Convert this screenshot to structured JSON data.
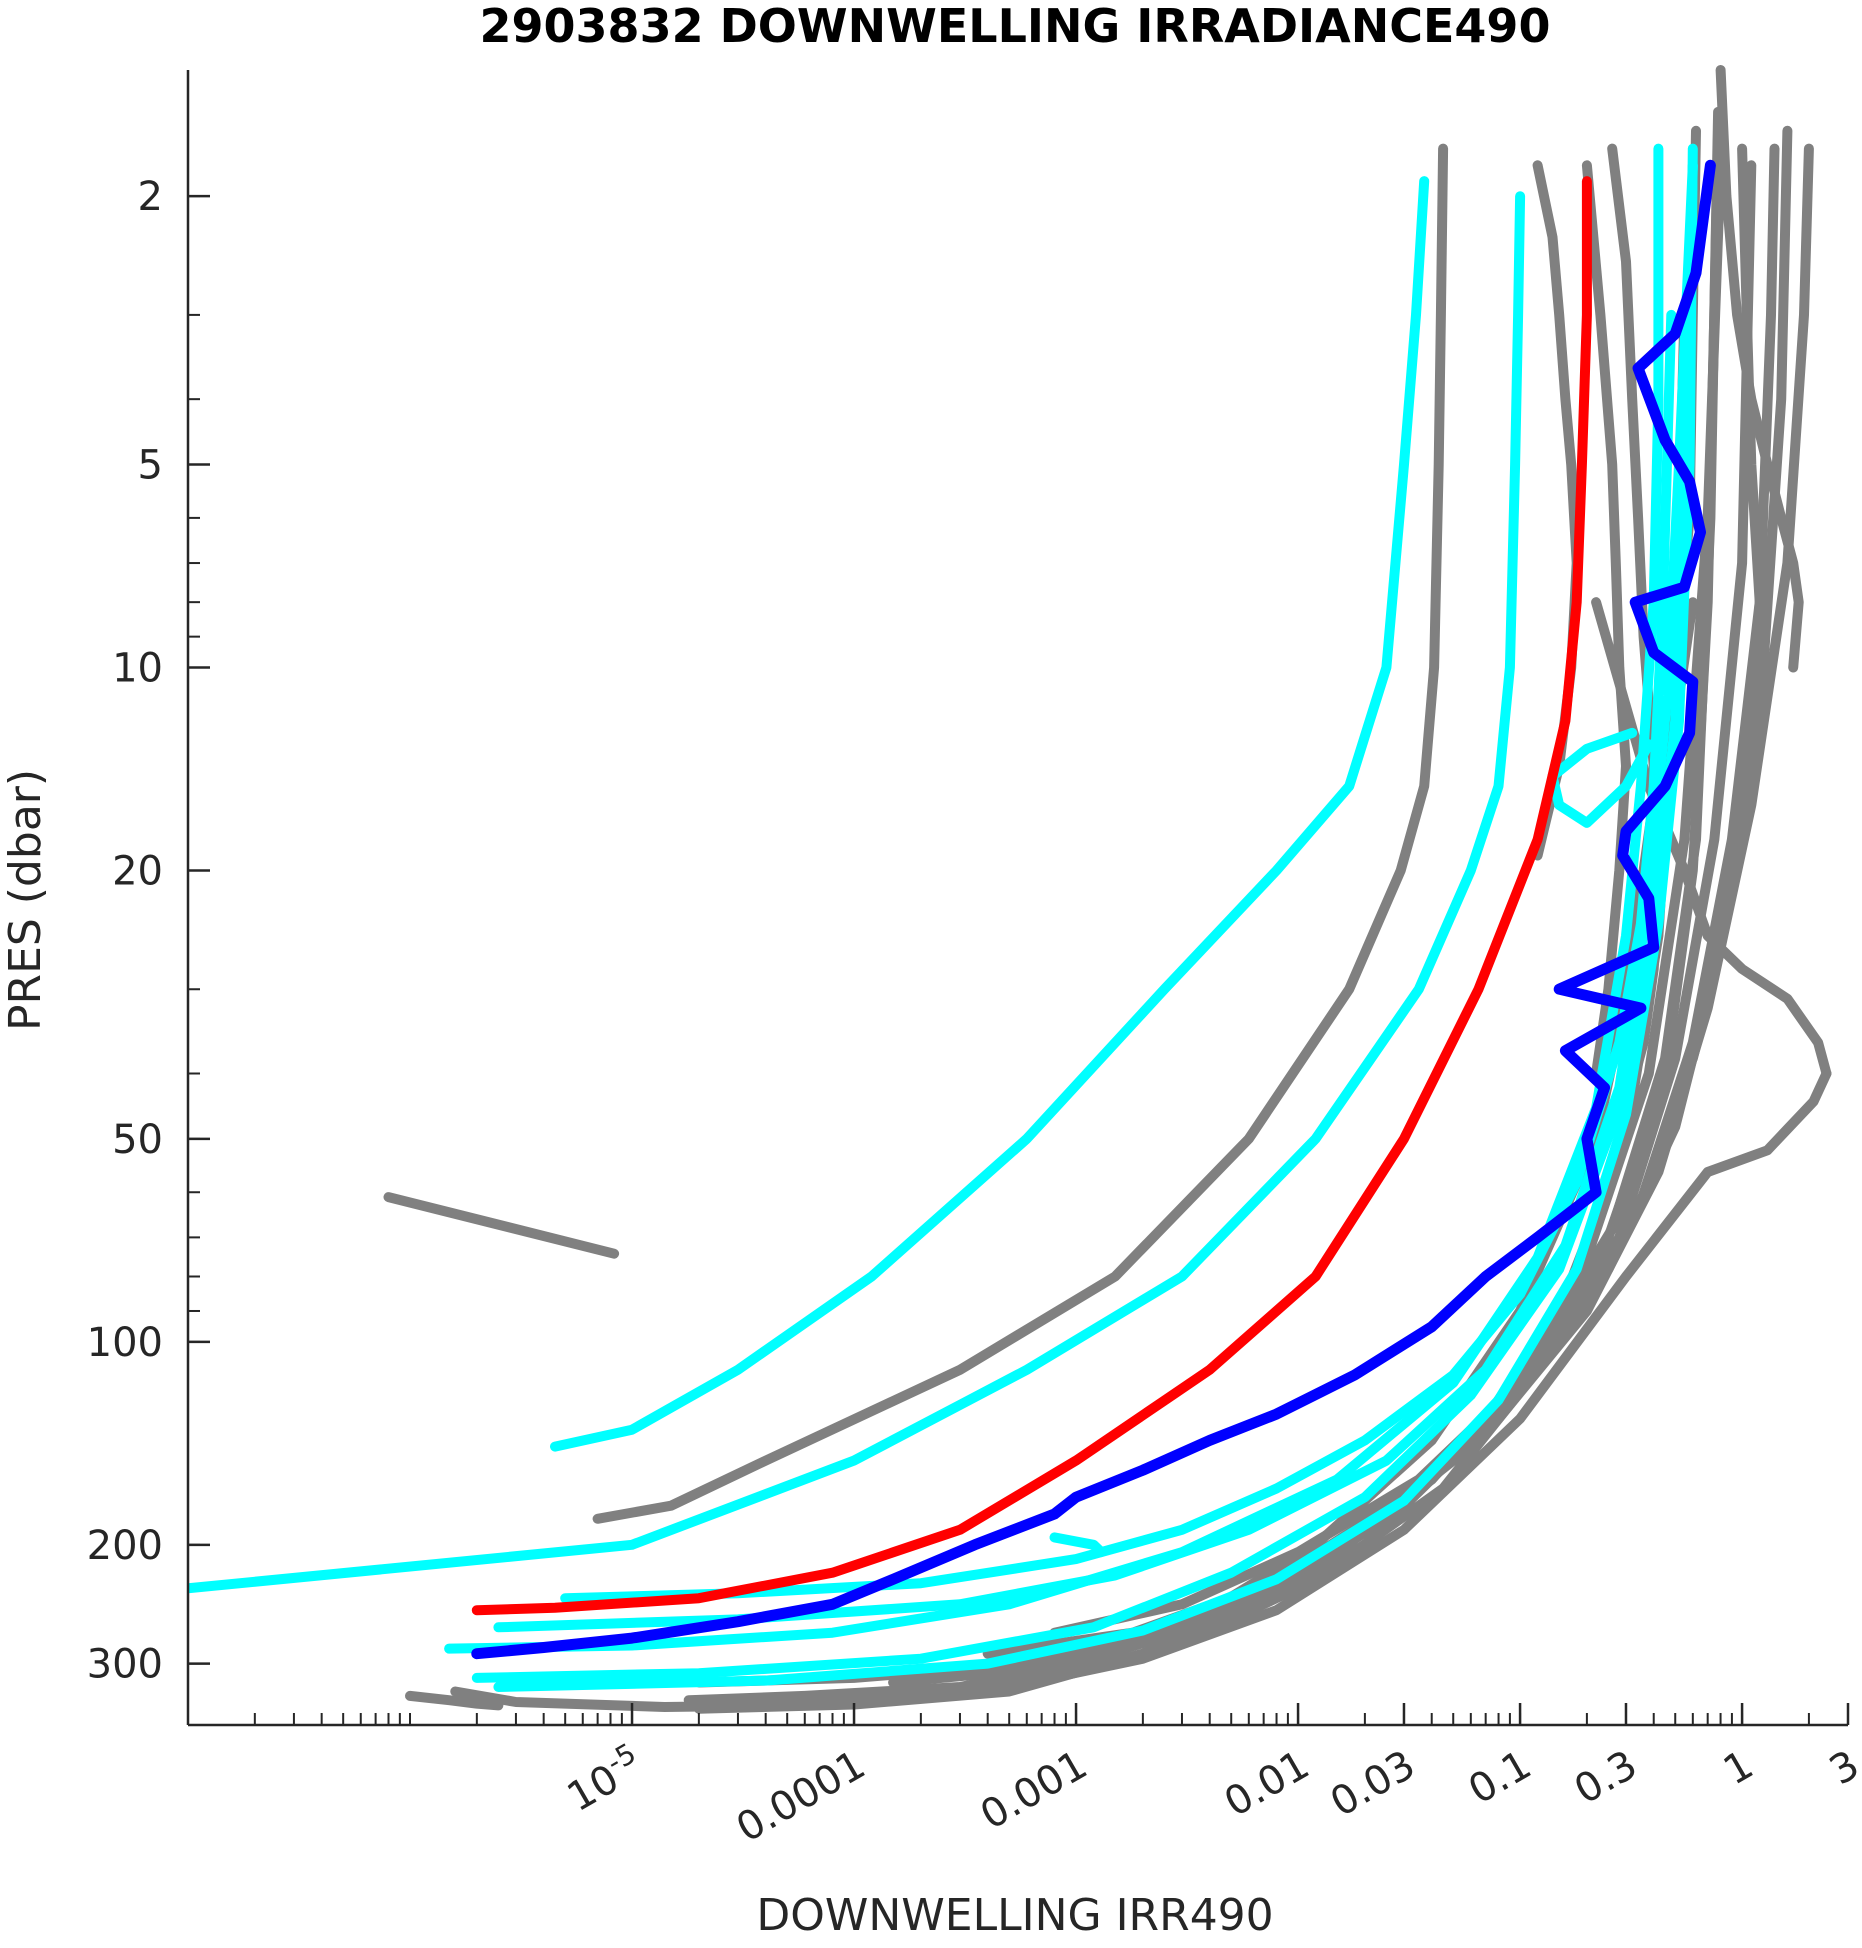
{
  "chart_data": {
    "type": "line",
    "title": "2903832  DOWNWELLING IRRADIANCE490",
    "xlabel": "DOWNWELLING IRR490",
    "ylabel": "PRES (dbar)",
    "x_scale": "log",
    "y_scale": "log",
    "y_reversed": true,
    "xlim": [
      1e-07,
      3
    ],
    "ylim": [
      1.3,
      370
    ],
    "x_ticks": [
      {
        "value": 1e-05,
        "base": "10",
        "exp": "-5"
      },
      {
        "value": 0.0001,
        "label": "0.0001"
      },
      {
        "value": 0.001,
        "label": "0.001"
      },
      {
        "value": 0.01,
        "label": "0.01"
      },
      {
        "value": 0.03,
        "label": "0.03"
      },
      {
        "value": 0.1,
        "label": "0.1"
      },
      {
        "value": 0.3,
        "label": "0.3"
      },
      {
        "value": 1,
        "label": "1"
      },
      {
        "value": 3,
        "label": "3"
      }
    ],
    "y_ticks": [
      {
        "value": 2,
        "label": "2"
      },
      {
        "value": 5,
        "label": "5"
      },
      {
        "value": 10,
        "label": "10"
      },
      {
        "value": 20,
        "label": "20"
      },
      {
        "value": 50,
        "label": "50"
      },
      {
        "value": 100,
        "label": "100"
      },
      {
        "value": 200,
        "label": "200"
      },
      {
        "value": 300,
        "label": "300"
      }
    ],
    "colors": {
      "gray": "#808080",
      "cyan": "#00ffff",
      "red": "#ff0000",
      "blue": "#0000ff"
    },
    "series": [
      {
        "color": "gray",
        "x": [
          0.045,
          0.044,
          0.043,
          0.041,
          0.037,
          0.029,
          0.017,
          0.006,
          0.0015,
          0.0003,
          4e-05,
          1.5e-05,
          7e-06
        ],
        "y": [
          1.7,
          3,
          5,
          10,
          15,
          20,
          30,
          50,
          80,
          110,
          150,
          175,
          183
        ]
      },
      {
        "color": "gray",
        "x": [
          1.6e-06,
          3e-06,
          1.4e-05,
          5e-05,
          0.0002,
          0.0008,
          0.003,
          0.012,
          0.04,
          0.1,
          0.22,
          0.4,
          0.6
        ],
        "y": [
          330,
          342,
          348,
          346,
          335,
          310,
          265,
          200,
          140,
          90,
          50,
          20,
          8
        ]
      },
      {
        "color": "gray",
        "x": [
          1.8e-05,
          6e-05,
          0.0003,
          0.001,
          0.005,
          0.02,
          0.06,
          0.15,
          0.3,
          0.42,
          0.5,
          0.55
        ],
        "y": [
          340,
          335,
          325,
          300,
          255,
          200,
          140,
          90,
          50,
          25,
          10,
          3
        ]
      },
      {
        "color": "gray",
        "x": [
          2e-05,
          0.0001,
          0.0005,
          0.002,
          0.008,
          0.03,
          0.09,
          0.2,
          0.38,
          0.55,
          0.7,
          0.8
        ],
        "y": [
          350,
          345,
          330,
          290,
          235,
          175,
          120,
          75,
          40,
          18,
          6,
          1.8
        ]
      },
      {
        "color": "gray",
        "x": [
          3e-05,
          0.00015,
          0.0007,
          0.003,
          0.012,
          0.045,
          0.12,
          0.28,
          0.5,
          0.75,
          1.0,
          1.1
        ],
        "y": [
          345,
          338,
          318,
          280,
          225,
          165,
          110,
          70,
          38,
          18,
          7,
          1.8
        ]
      },
      {
        "color": "gray",
        "x": [
          2e-05,
          0.0001,
          0.0006,
          0.0025,
          0.01,
          0.04,
          0.11,
          0.26,
          0.45,
          0.62,
          0.72,
          0.78
        ],
        "y": [
          320,
          315,
          300,
          265,
          215,
          160,
          108,
          68,
          38,
          18,
          6,
          1.5
        ]
      },
      {
        "color": "gray",
        "x": [
          0.0001,
          0.0005,
          0.002,
          0.008,
          0.03,
          0.1,
          0.3,
          0.7,
          1.3,
          2.1,
          2.4
        ],
        "y": [
          338,
          325,
          295,
          250,
          190,
          130,
          80,
          56,
          52,
          44,
          40
        ]
      },
      {
        "color": "gray",
        "x": [
          0.22,
          0.38,
          0.55,
          0.7,
          1.0,
          1.6,
          2.2,
          2.4
        ],
        "y": [
          8,
          15,
          20,
          25,
          28,
          31,
          36,
          40
        ]
      },
      {
        "color": "gray",
        "x": [
          0.00015,
          0.0007,
          0.003,
          0.012,
          0.04,
          0.11,
          0.25,
          0.45,
          0.6,
          0.7,
          0.75,
          0.78
        ],
        "y": [
          320,
          305,
          270,
          215,
          160,
          110,
          70,
          40,
          20,
          8,
          3,
          1.6
        ]
      },
      {
        "color": "gray",
        "x": [
          0.0002,
          0.001,
          0.004,
          0.015,
          0.05,
          0.15,
          0.35,
          0.6,
          0.9,
          1.2,
          1.35,
          1.4
        ],
        "y": [
          310,
          295,
          255,
          205,
          150,
          100,
          62,
          36,
          18,
          8,
          3,
          1.7
        ]
      },
      {
        "color": "gray",
        "x": [
          0.0004,
          0.0018,
          0.007,
          0.025,
          0.08,
          0.2,
          0.42,
          0.7,
          1.1,
          1.6,
          1.9,
          2.0
        ],
        "y": [
          290,
          270,
          230,
          180,
          130,
          90,
          56,
          32,
          16,
          7,
          3,
          1.7
        ]
      },
      {
        "color": "gray",
        "x": [
          0.0008,
          0.003,
          0.01,
          0.035,
          0.1,
          0.25,
          0.5,
          0.8,
          1.2,
          1.5,
          1.6
        ],
        "y": [
          270,
          245,
          205,
          160,
          115,
          78,
          48,
          26,
          12,
          4,
          1.6
        ]
      },
      {
        "color": "gray",
        "x": [
          0.12,
          0.14,
          0.15,
          0.16,
          0.17,
          0.18,
          0.17,
          0.15,
          0.13,
          0.12
        ],
        "y": [
          1.8,
          2.3,
          3,
          4,
          5,
          7,
          10,
          14,
          17,
          19
        ]
      },
      {
        "color": "gray",
        "x": [
          0.2,
          0.23,
          0.26,
          0.27,
          0.28,
          0.3,
          0.28,
          0.25,
          0.22
        ],
        "y": [
          1.8,
          3,
          5,
          7,
          10,
          14,
          20,
          30,
          40
        ]
      },
      {
        "color": "gray",
        "x": [
          0.26,
          0.3,
          0.32,
          0.34,
          0.36,
          0.4,
          0.42,
          0.4,
          0.36,
          0.3
        ],
        "y": [
          1.7,
          2.5,
          4,
          6,
          9,
          14,
          20,
          28,
          36,
          45
        ]
      },
      {
        "color": "gray",
        "x": [
          0.8,
          0.85,
          0.95,
          1.1,
          1.3,
          1.5,
          1.7,
          1.8,
          1.7
        ],
        "y": [
          1.3,
          2,
          3,
          4,
          5,
          6,
          7,
          8,
          10
        ]
      },
      {
        "color": "gray",
        "x": [
          0.62,
          0.6,
          0.58,
          0.5,
          0.42,
          0.36,
          0.3,
          0.26
        ],
        "y": [
          1.6,
          3,
          6,
          10,
          14,
          20,
          28,
          36
        ]
      },
      {
        "color": "gray",
        "x": [
          1.0,
          1.05,
          1.1,
          1.2,
          1.1,
          0.95,
          0.8,
          0.6
        ],
        "y": [
          1.7,
          3,
          5,
          8,
          12,
          18,
          26,
          38
        ]
      },
      {
        "color": "gray",
        "x": [
          1e-06,
          1.5e-06,
          2e-06,
          2.5e-06
        ],
        "y": [
          335,
          340,
          344,
          346
        ]
      },
      {
        "color": "gray",
        "x": [
          8e-07,
          8.3e-06
        ],
        "y": [
          61,
          74
        ]
      },
      {
        "color": "cyan",
        "x": [
          0.037,
          0.034,
          0.03,
          0.025,
          0.017,
          0.008,
          0.0025,
          0.0006,
          0.00012,
          3e-05,
          1e-05,
          4.5e-06
        ],
        "y": [
          1.9,
          3,
          5,
          10,
          15,
          20,
          30,
          50,
          80,
          110,
          135,
          143
        ]
      },
      {
        "color": "cyan",
        "x": [
          0.1,
          0.098,
          0.095,
          0.09,
          0.08,
          0.06,
          0.035,
          0.012,
          0.003,
          0.0006,
          0.0001,
          1e-05,
          1e-07
        ],
        "y": [
          2,
          3,
          5,
          10,
          15,
          20,
          30,
          50,
          80,
          110,
          150,
          200,
          232
        ]
      },
      {
        "color": "cyan",
        "x": [
          1.5e-06,
          1e-05,
          8e-05,
          0.0005,
          0.003,
          0.015,
          0.05,
          0.12,
          0.22,
          0.3,
          0.35,
          0.4,
          0.42,
          0.42
        ],
        "y": [
          285,
          282,
          270,
          245,
          205,
          160,
          115,
          75,
          45,
          25,
          15,
          8,
          4,
          1.7
        ]
      },
      {
        "color": "cyan",
        "x": [
          2e-06,
          2e-05,
          0.0002,
          0.0012,
          0.005,
          0.02,
          0.06,
          0.15,
          0.28,
          0.4,
          0.5,
          0.55,
          0.58,
          0.6
        ],
        "y": [
          315,
          310,
          295,
          265,
          220,
          170,
          120,
          78,
          45,
          25,
          12,
          6,
          3,
          1.8
        ]
      },
      {
        "color": "cyan",
        "x": [
          2.5e-06,
          4e-05,
          0.0004,
          0.002,
          0.008,
          0.03,
          0.08,
          0.18,
          0.3,
          0.42,
          0.52,
          0.58,
          0.6
        ],
        "y": [
          325,
          318,
          300,
          268,
          225,
          172,
          122,
          78,
          46,
          24,
          12,
          5,
          1.7
        ]
      },
      {
        "color": "cyan",
        "x": [
          2.5e-06,
          3e-05,
          0.0003,
          0.0015,
          0.006,
          0.025,
          0.07,
          0.16,
          0.28,
          0.38,
          0.46,
          0.52,
          0.6
        ],
        "y": [
          265,
          258,
          245,
          222,
          190,
          150,
          110,
          72,
          42,
          22,
          11,
          5,
          1.8
        ]
      },
      {
        "color": "cyan",
        "x": [
          5e-06,
          3e-05,
          0.0002,
          0.001,
          0.003,
          0.008,
          0.02,
          0.05,
          0.1,
          0.18,
          0.28,
          0.35,
          0.4,
          0.44,
          0.48
        ],
        "y": [
          240,
          236,
          228,
          210,
          190,
          165,
          140,
          112,
          85,
          58,
          36,
          24,
          15,
          8,
          3
        ]
      },
      {
        "color": "cyan",
        "x": [
          0.0008,
          0.0012,
          0.0013
        ],
        "y": [
          195,
          200,
          205
        ]
      },
      {
        "color": "cyan",
        "x": [
          0.32,
          0.2,
          0.14,
          0.15,
          0.2,
          0.3,
          0.38
        ],
        "y": [
          12.5,
          13.2,
          14.5,
          16,
          17,
          15,
          13
        ]
      },
      {
        "color": "red",
        "x": [
          0.2,
          0.2,
          0.19,
          0.18,
          0.16,
          0.12,
          0.065,
          0.03,
          0.012,
          0.004,
          0.001,
          0.0003,
          8e-05,
          2e-05,
          4.5e-06,
          2e-06
        ],
        "y": [
          1.9,
          3,
          5,
          8,
          12,
          18,
          30,
          50,
          80,
          110,
          150,
          190,
          220,
          240,
          248,
          250
        ]
      },
      {
        "color": "blue",
        "x": [
          0.72,
          0.62,
          0.5,
          0.34,
          0.45,
          0.58,
          0.65,
          0.55,
          0.33,
          0.4,
          0.6,
          0.58,
          0.45,
          0.3,
          0.29,
          0.38,
          0.4,
          0.15,
          0.35,
          0.16,
          0.24,
          0.2,
          0.22,
          0.12,
          0.07,
          0.04,
          0.018,
          0.008,
          0.004,
          0.002,
          0.001,
          0.0008,
          0.00035,
          0.00015,
          8e-05,
          3e-05,
          1e-05,
          4e-06,
          2e-06
        ],
        "y": [
          1.8,
          2.6,
          3.2,
          3.6,
          4.6,
          5.3,
          6.3,
          7.6,
          8,
          9.5,
          10.5,
          12.5,
          15,
          17.5,
          19,
          22,
          26,
          30,
          32,
          37,
          42,
          50,
          60,
          70,
          80,
          95,
          112,
          128,
          140,
          155,
          170,
          180,
          200,
          225,
          245,
          260,
          275,
          284,
          290
        ]
      }
    ]
  }
}
